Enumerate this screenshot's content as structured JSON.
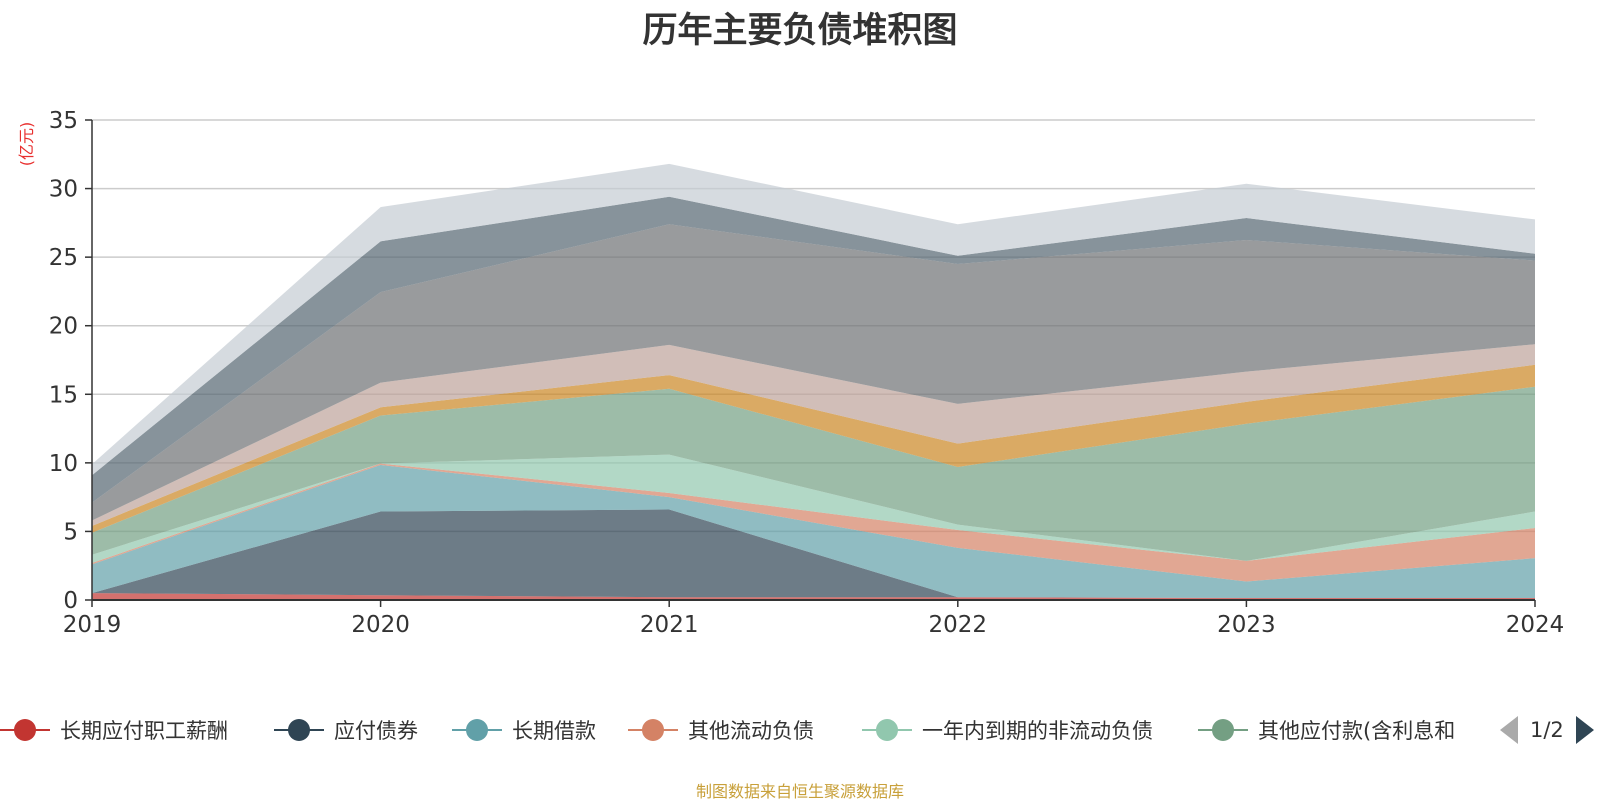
{
  "chart_data": {
    "type": "area",
    "stacked": true,
    "title": "历年主要负债堆积图",
    "ylabel": "(亿元)",
    "xlabel": "",
    "x": [
      "2019",
      "2020",
      "2021",
      "2022",
      "2023",
      "2024"
    ],
    "ylim": [
      0,
      35
    ],
    "yticks": [
      "0",
      "5",
      "10",
      "15",
      "20",
      "25",
      "30",
      "35"
    ],
    "grid": true,
    "series": [
      {
        "name": "长期应付职工薪酬",
        "color": "#c23531",
        "values": [
          0.5,
          0.35,
          0.2,
          0.2,
          0.15,
          0.15
        ]
      },
      {
        "name": "应付债券",
        "color": "#2f4554",
        "values": [
          0.0,
          6.1,
          6.4,
          0.0,
          0.0,
          0.0
        ]
      },
      {
        "name": "长期借款",
        "color": "#61a0a8",
        "values": [
          2.1,
          3.4,
          0.9,
          3.6,
          1.2,
          2.9
        ]
      },
      {
        "name": "其他流动负债",
        "color": "#d48265",
        "values": [
          0.1,
          0.1,
          0.3,
          1.3,
          1.5,
          2.2
        ]
      },
      {
        "name": "一年内到期的非流动负债",
        "color": "#91c7ae",
        "values": [
          0.6,
          0.0,
          2.8,
          0.4,
          0.0,
          1.2
        ]
      },
      {
        "name": "其他应付款(含利息和股利)",
        "color": "#749f83",
        "values": [
          1.6,
          3.5,
          4.8,
          4.2,
          10.0,
          9.1
        ]
      },
      {
        "name": "",
        "color": "#ca8622",
        "values": [
          0.5,
          0.6,
          1.0,
          1.7,
          1.6,
          1.6
        ]
      },
      {
        "name": "",
        "color": "#bda29a",
        "values": [
          0.4,
          1.8,
          2.2,
          2.9,
          2.2,
          1.5
        ]
      },
      {
        "name": "",
        "color": "#6e7074",
        "values": [
          1.3,
          6.6,
          8.8,
          10.2,
          9.6,
          6.1
        ]
      },
      {
        "name": "",
        "color": "#546570",
        "values": [
          2.0,
          3.7,
          2.0,
          0.6,
          1.6,
          0.5
        ]
      },
      {
        "name": "",
        "color": "#c4ccd3",
        "values": [
          0.8,
          2.5,
          2.4,
          2.3,
          2.5,
          2.5
        ]
      }
    ]
  },
  "legend": {
    "items": [
      {
        "label": "长期应付职工薪酬",
        "color": "#c23531"
      },
      {
        "label": "应付债券",
        "color": "#2f4554"
      },
      {
        "label": "长期借款",
        "color": "#61a0a8"
      },
      {
        "label": "其他流动负债",
        "color": "#d48265"
      },
      {
        "label": "一年内到期的非流动负债",
        "color": "#91c7ae"
      },
      {
        "label": "其他应付款(含利息和",
        "color": "#749f83"
      }
    ],
    "page_indicator": "1/2",
    "prev_icon": "triangle-left-icon",
    "next_icon": "triangle-right-icon"
  },
  "footer": {
    "source_note": "制图数据来自恒生聚源数据库"
  }
}
